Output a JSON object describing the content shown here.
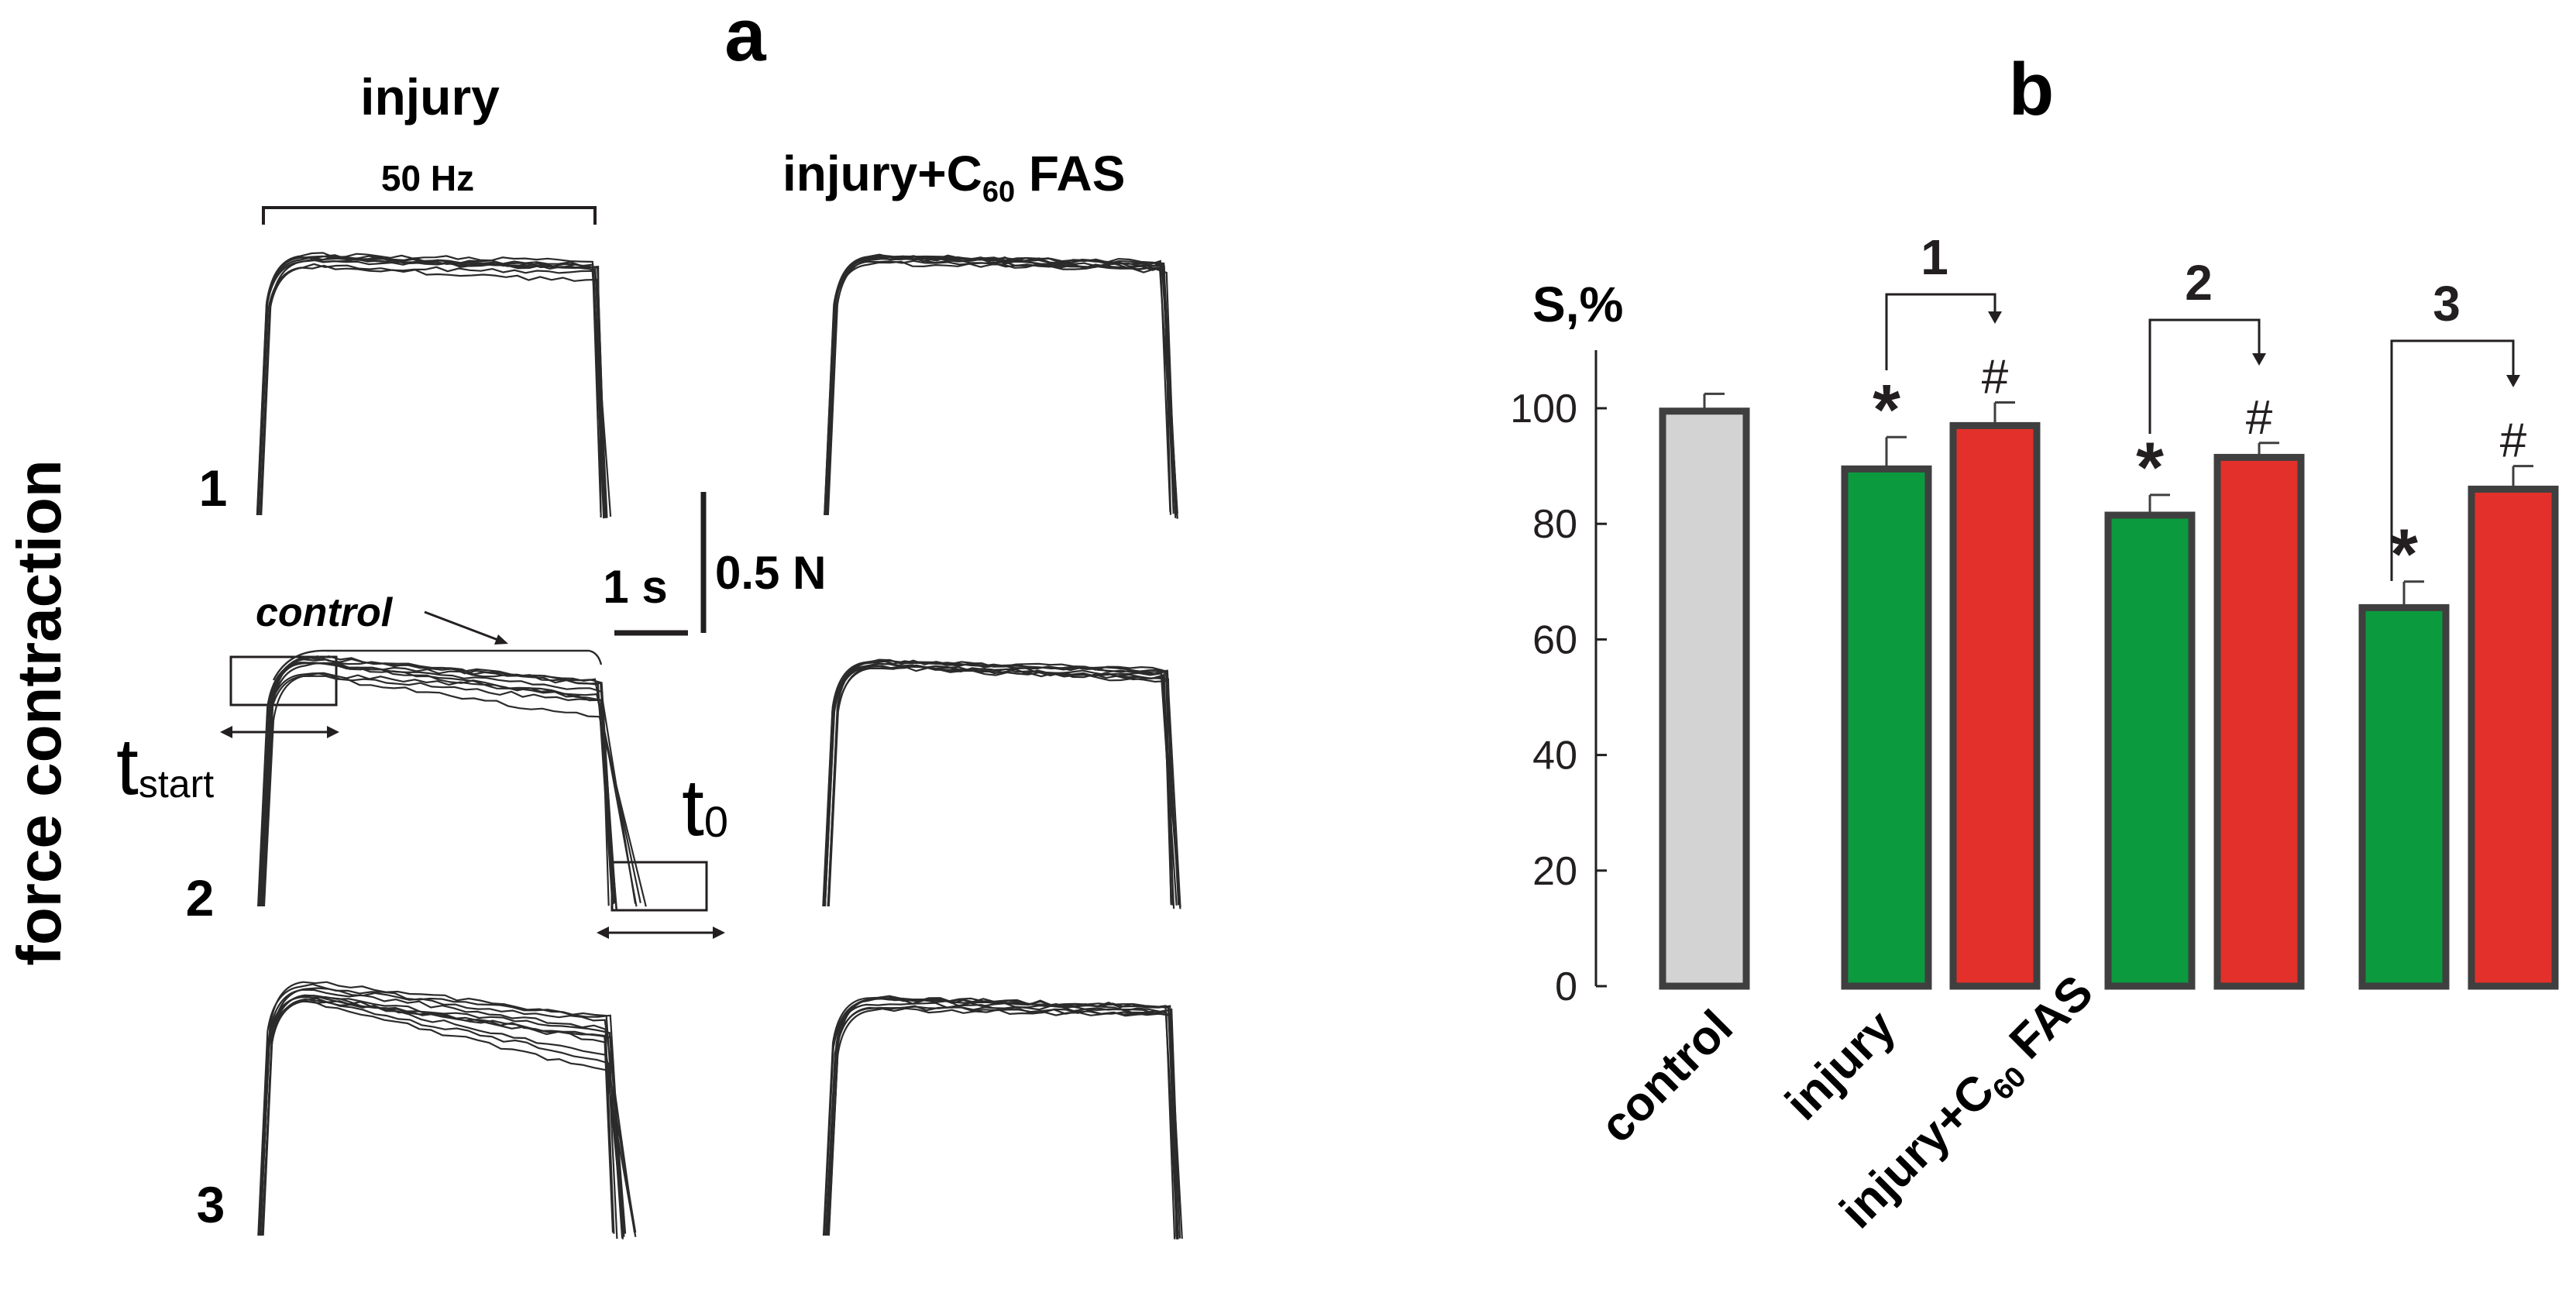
{
  "panel_a": {
    "letter": "a",
    "y_label": "force contraction",
    "col_injury": "injury",
    "col_treated_main": "injury+C",
    "col_treated_sub": "60",
    "col_treated_tail": " FAS",
    "stim_label": "50 Hz",
    "row_labels": [
      "1",
      "2",
      "3"
    ],
    "scale_time": "1 s",
    "scale_force": "0.5 N",
    "control_label": "control",
    "t_start_main": "t",
    "t_start_sub": "start",
    "t0_main": "t",
    "t0_sub": "0",
    "trace_color": "#2b2b2b"
  },
  "panel_b": {
    "letter": "b",
    "y_unit": "S,%",
    "x_label_control": "control",
    "x_label_injury": "injury",
    "x_label_treated_main": "injury+C",
    "x_label_treated_sub": "60",
    "x_label_treated_tail": " FAS",
    "group_labels": [
      "1",
      "2",
      "3"
    ],
    "star": "*",
    "hash": "#",
    "colors": {
      "control": "#d4d3d3",
      "injury": "#0b9a3e",
      "treated": "#e3302a",
      "outline": "#3f3f3f"
    }
  },
  "chart_data": {
    "type": "bar",
    "title": "",
    "ylabel": "S,%",
    "xlabel": "",
    "ylim": [
      0,
      110
    ],
    "yticks": [
      0,
      20,
      40,
      60,
      80,
      100
    ],
    "categories": [
      "control",
      "1 injury",
      "1 injury+C60 FAS",
      "2 injury",
      "2 injury+C60 FAS",
      "3 injury",
      "3 injury+C60 FAS"
    ],
    "bars": [
      {
        "group": "",
        "condition": "control",
        "value": 99.5,
        "error": 3,
        "mark": ""
      },
      {
        "group": "1",
        "condition": "injury",
        "value": 89.5,
        "error": 5.5,
        "mark": "*"
      },
      {
        "group": "1",
        "condition": "injury+C60 FAS",
        "value": 97,
        "error": 4,
        "mark": "#"
      },
      {
        "group": "2",
        "condition": "injury",
        "value": 81.5,
        "error": 3.5,
        "mark": "*"
      },
      {
        "group": "2",
        "condition": "injury+C60 FAS",
        "value": 91.5,
        "error": 2.5,
        "mark": "#"
      },
      {
        "group": "3",
        "condition": "injury",
        "value": 65.5,
        "error": 4.5,
        "mark": "*"
      },
      {
        "group": "3",
        "condition": "injury+C60 FAS",
        "value": 86,
        "error": 4,
        "mark": "#"
      }
    ]
  }
}
